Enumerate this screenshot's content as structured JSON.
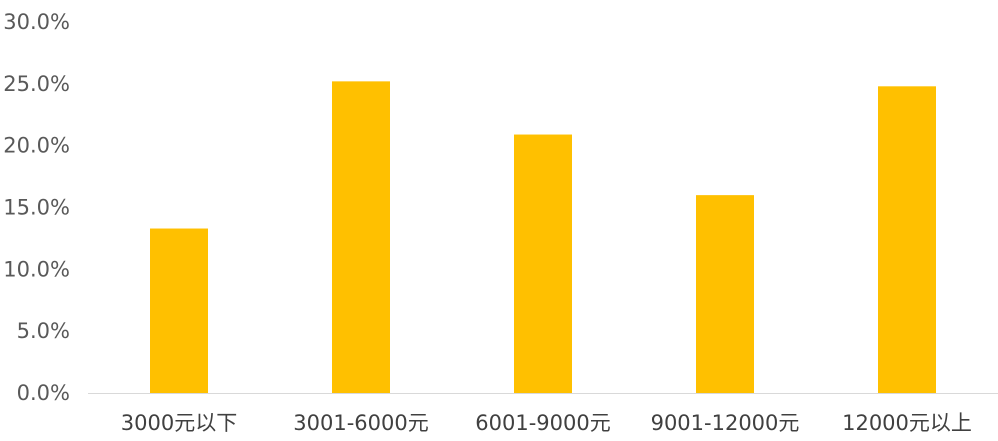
{
  "chart_data": {
    "type": "bar",
    "title": "",
    "xlabel": "",
    "ylabel": "",
    "categories": [
      "3000元以下",
      "3001-6000元",
      "6001-9000元",
      "9001-12000元",
      "12000元以上"
    ],
    "values": [
      13.3,
      25.2,
      20.9,
      16.0,
      24.8
    ],
    "ylim": [
      0,
      30
    ],
    "yticks": [
      0,
      5,
      10,
      15,
      20,
      25,
      30
    ],
    "ytick_labels": [
      "0.0%",
      "5.0%",
      "10.0%",
      "15.0%",
      "20.0%",
      "25.0%",
      "30.0%"
    ],
    "grid": false,
    "legend": "none",
    "colors": {
      "bar": "#FFC000",
      "axis": "#D9D9D9"
    }
  }
}
